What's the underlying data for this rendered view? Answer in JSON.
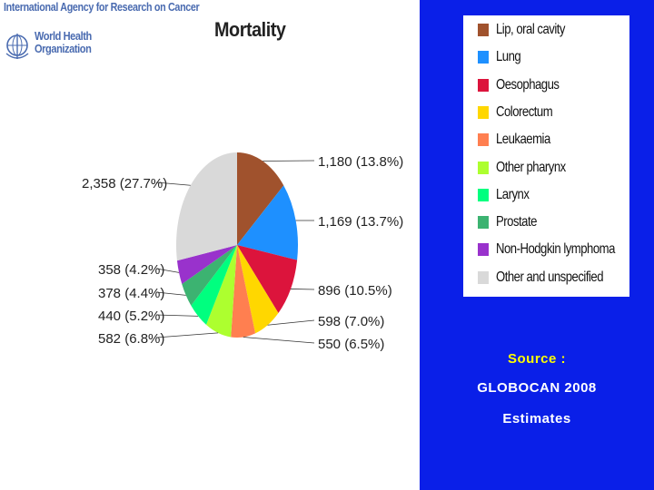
{
  "header": {
    "org_line": "International Agency for Research on Cancer",
    "who_line1": "World Health",
    "who_line2": "Organization"
  },
  "source": {
    "line1": "Source :",
    "line2": "GLOBOCAN 2008",
    "line3": "Estimates"
  },
  "chart_data": {
    "type": "pie",
    "title": "Mortality",
    "legend_position": "right",
    "slices": [
      {
        "name": "Lip, oral cavity",
        "value": 1180,
        "label": "1,180 (13.8%)",
        "color": "#a0522d"
      },
      {
        "name": "Lung",
        "value": 1169,
        "label": "1,169 (13.7%)",
        "color": "#1e90ff"
      },
      {
        "name": "Oesophagus",
        "value": 896,
        "label": "896 (10.5%)",
        "color": "#dc143c"
      },
      {
        "name": "Colorectum",
        "value": 598,
        "label": "598 (7.0%)",
        "color": "#ffd700"
      },
      {
        "name": "Leukaemia",
        "value": 550,
        "label": "550 (6.5%)",
        "color": "#ff7f50"
      },
      {
        "name": "Other pharynx",
        "value": 582,
        "label": "582 (6.8%)",
        "color": "#adff2f"
      },
      {
        "name": "Larynx",
        "value": 440,
        "label": "440 (5.2%)",
        "color": "#00ff7f"
      },
      {
        "name": "Prostate",
        "value": 378,
        "label": "378 (4.4%)",
        "color": "#3cb371"
      },
      {
        "name": "Non-Hodgkin lymphoma",
        "value": 358,
        "label": "358 (4.2%)",
        "color": "#9932cc"
      },
      {
        "name": "Other and unspecified",
        "value": 2358,
        "label": "2,358 (27.7%)",
        "color": "#d9d9d9"
      }
    ]
  }
}
